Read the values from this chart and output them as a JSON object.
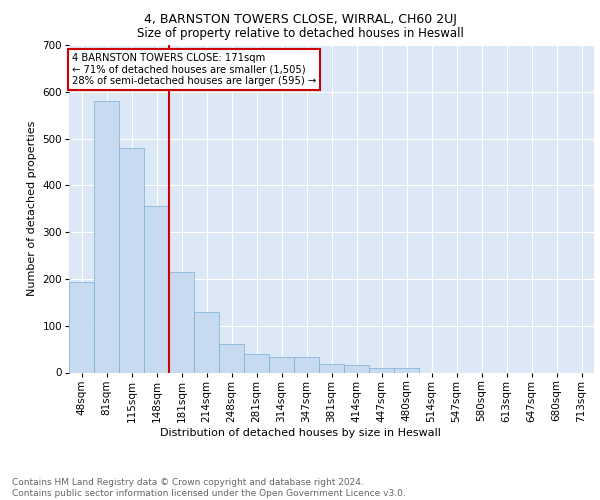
{
  "title1": "4, BARNSTON TOWERS CLOSE, WIRRAL, CH60 2UJ",
  "title2": "Size of property relative to detached houses in Heswall",
  "xlabel": "Distribution of detached houses by size in Heswall",
  "ylabel": "Number of detached properties",
  "footnote": "Contains HM Land Registry data © Crown copyright and database right 2024.\nContains public sector information licensed under the Open Government Licence v3.0.",
  "annotation_line1": "4 BARNSTON TOWERS CLOSE: 171sqm",
  "annotation_line2": "← 71% of detached houses are smaller (1,505)",
  "annotation_line3": "28% of semi-detached houses are larger (595) →",
  "bar_categories": [
    "48sqm",
    "81sqm",
    "115sqm",
    "148sqm",
    "181sqm",
    "214sqm",
    "248sqm",
    "281sqm",
    "314sqm",
    "347sqm",
    "381sqm",
    "414sqm",
    "447sqm",
    "480sqm",
    "514sqm",
    "547sqm",
    "580sqm",
    "613sqm",
    "647sqm",
    "680sqm",
    "713sqm"
  ],
  "bar_values": [
    193,
    580,
    480,
    355,
    215,
    130,
    60,
    40,
    34,
    33,
    18,
    17,
    10,
    10,
    0,
    0,
    0,
    0,
    0,
    0,
    0
  ],
  "bar_color": "#c8daf0",
  "bar_edge_color": "#7aafd6",
  "vline_color": "#cc0000",
  "ylim": [
    0,
    700
  ],
  "yticks": [
    0,
    100,
    200,
    300,
    400,
    500,
    600,
    700
  ],
  "annotation_box_color": "#cc0000",
  "background_color": "#dce8f5",
  "grid_color": "#ffffff",
  "title1_fontsize": 9,
  "title2_fontsize": 8.5,
  "xlabel_fontsize": 8,
  "ylabel_fontsize": 8,
  "footnote_fontsize": 6.5,
  "tick_fontsize": 7.5
}
